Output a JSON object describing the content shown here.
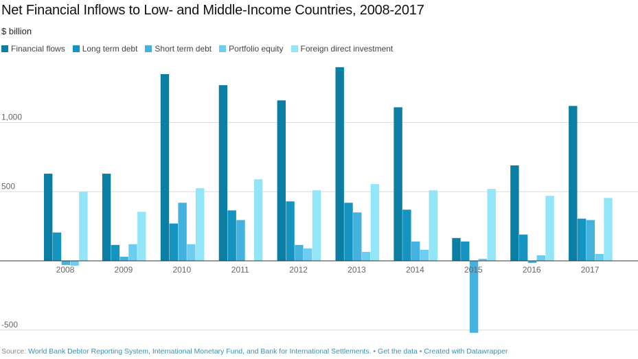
{
  "chart_data": {
    "type": "bar",
    "title": "Net Financial Inflows to Low- and Middle-Income Countries, 2008-2017",
    "subtitle": "$ billion",
    "categories": [
      "2008",
      "2009",
      "2010",
      "2011",
      "2012",
      "2013",
      "2014",
      "2015",
      "2016",
      "2017"
    ],
    "series": [
      {
        "name": "Financial flows",
        "color": "#0b7fa3",
        "values": [
          630,
          630,
          1350,
          1270,
          1160,
          1400,
          1110,
          165,
          690,
          1120
        ]
      },
      {
        "name": "Long term debt",
        "color": "#1594c2",
        "values": [
          205,
          115,
          270,
          365,
          430,
          420,
          370,
          140,
          190,
          305
        ]
      },
      {
        "name": "Short term debt",
        "color": "#44b2de",
        "values": [
          -30,
          30,
          420,
          295,
          115,
          350,
          140,
          -520,
          -15,
          295
        ]
      },
      {
        "name": "Portfolio equity",
        "color": "#6ccdf0",
        "values": [
          -35,
          120,
          120,
          0,
          90,
          65,
          80,
          15,
          40,
          50
        ]
      },
      {
        "name": "Foreign direct investment",
        "color": "#93e6f8",
        "values": [
          500,
          355,
          525,
          590,
          510,
          555,
          510,
          520,
          470,
          455
        ]
      }
    ],
    "ylim": [
      -500,
      1400
    ],
    "yticks": [
      1000,
      500,
      -500
    ],
    "ytick_labels": [
      "1,000",
      "500",
      "-500"
    ],
    "grid": true,
    "legend": "top-left"
  },
  "footer": {
    "source_prefix": "Source: ",
    "source_link": "World Bank Debtor Reporting System, International Monetary Fund, and Bank for International Settlements.",
    "sep1": " • ",
    "data_link": "Get the data",
    "sep2": " • ",
    "dw_link": "Created with Datawrapper"
  }
}
